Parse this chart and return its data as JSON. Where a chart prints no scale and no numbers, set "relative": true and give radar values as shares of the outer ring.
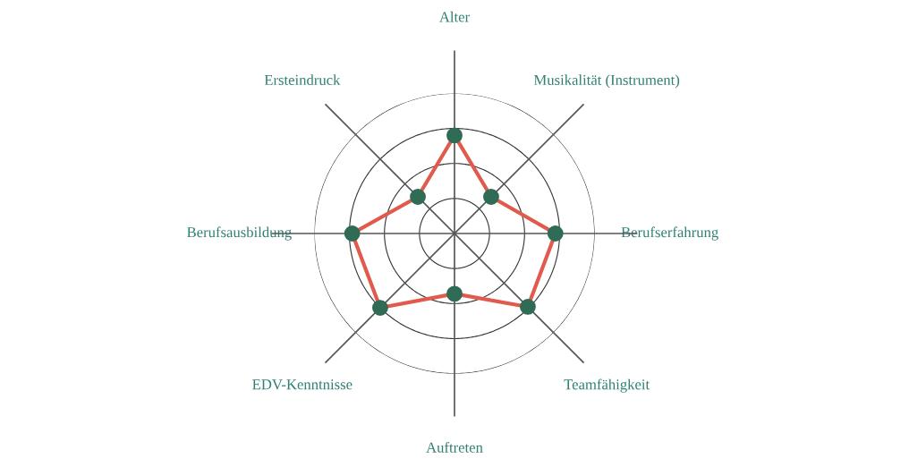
{
  "chart_data": {
    "type": "radar",
    "relative": true,
    "grid": true,
    "marker": "circle",
    "line_style": "solid",
    "categories": [
      "Alter",
      "Musikalität (Instrument)",
      "Berufserfahrung",
      "Teamfähigkeit",
      "Auftreten",
      "EDV-Kenntnisse",
      "Berufsausbildung",
      "Ersteindruck"
    ],
    "series": [
      {
        "color": "#e05a4e",
        "values": [
          0.7,
          0.37,
          0.72,
          0.74,
          0.43,
          0.75,
          0.73,
          0.37
        ]
      }
    ]
  }
}
